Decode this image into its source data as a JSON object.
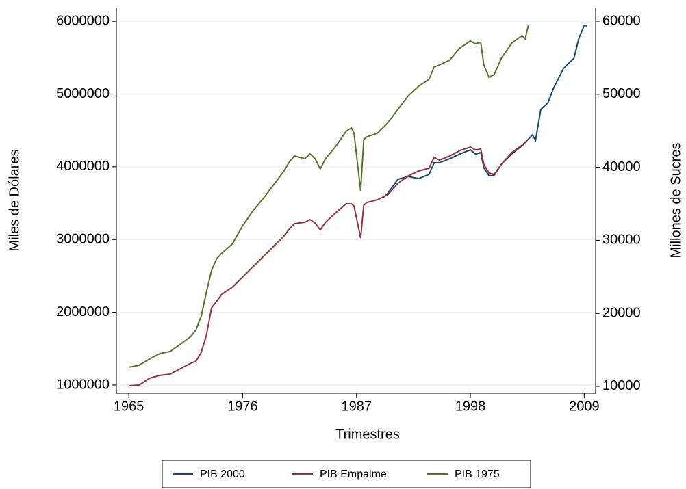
{
  "chart_data": {
    "type": "line",
    "x_label": "Trimestres",
    "y_label": "Miles de Dólares",
    "y2_label": "Millones de Sucres",
    "xlim": [
      1963.8,
      2010.1
    ],
    "xticks": [
      1965,
      1976,
      1987,
      1998,
      2009
    ],
    "ylim": [
      887000,
      6180000
    ],
    "yticks": [
      1000000,
      2000000,
      3000000,
      4000000,
      5000000,
      6000000
    ],
    "y2lim": [
      9060,
      61780
    ],
    "y2ticks": [
      10000,
      20000,
      30000,
      40000,
      50000,
      60000
    ],
    "grid": true,
    "legend": "bottom",
    "series": [
      {
        "name": "PIB 2000",
        "color": "#1a476f",
        "x": [
          1989.5,
          1990,
          1991,
          1992,
          1993,
          1994,
          1994.5,
          1995,
          1996,
          1997,
          1998,
          1998.5,
          1999,
          1999.3,
          1999.8,
          2000.3,
          2001,
          2002,
          2003,
          2004,
          2004.3,
          2004.8,
          2005.5,
          2006,
          2007,
          2008,
          2008.5,
          2009,
          2009.3
        ],
        "values": [
          3566000,
          3632000,
          3829000,
          3866000,
          3838000,
          3895000,
          4055000,
          4055000,
          4111000,
          4177000,
          4233000,
          4177000,
          4195000,
          3989000,
          3876000,
          3885000,
          4036000,
          4177000,
          4290000,
          4440000,
          4365000,
          4788000,
          4882000,
          5070000,
          5352000,
          5493000,
          5775000,
          5944000,
          5934000
        ]
      },
      {
        "name": "PIB Empalme",
        "color": "#90353b",
        "x": [
          1965,
          1966,
          1967,
          1968,
          1969,
          1970,
          1971,
          1971.5,
          1972,
          1972.5,
          1973,
          1973.5,
          1974,
          1975,
          1976,
          1977,
          1978,
          1979,
          1980,
          1980.5,
          1981,
          1982,
          1982.5,
          1983,
          1983.5,
          1984,
          1985,
          1986,
          1986.5,
          1986.75,
          1987.4,
          1987.7,
          1988,
          1989,
          1990,
          1991,
          1992,
          1993,
          1994,
          1994.5,
          1995,
          1996,
          1997,
          1998,
          1998.5,
          1999,
          1999.3,
          1999.8,
          2000.3,
          2001,
          2002,
          2003,
          2003.5
        ],
        "values": [
          990000,
          1000000,
          1094000,
          1132000,
          1150000,
          1226000,
          1301000,
          1329000,
          1451000,
          1686000,
          2062000,
          2156000,
          2250000,
          2344000,
          2485000,
          2626000,
          2767000,
          2908000,
          3049000,
          3143000,
          3218000,
          3237000,
          3274000,
          3227000,
          3133000,
          3237000,
          3368000,
          3491000,
          3491000,
          3462000,
          3021000,
          3472000,
          3509000,
          3547000,
          3613000,
          3773000,
          3876000,
          3942000,
          3980000,
          4130000,
          4092000,
          4148000,
          4224000,
          4271000,
          4233000,
          4243000,
          4036000,
          3914000,
          3895000,
          4036000,
          4195000,
          4299000,
          4365000
        ]
      },
      {
        "name": "PIB 1975",
        "color": "#55752f",
        "axis": "y2",
        "x": [
          1965,
          1966,
          1967,
          1968,
          1969,
          1970,
          1971,
          1971.5,
          1972,
          1972.5,
          1973,
          1973.5,
          1974,
          1975,
          1976,
          1977,
          1978,
          1979,
          1980,
          1980.5,
          1981,
          1982,
          1982.5,
          1983,
          1983.5,
          1984,
          1985,
          1986,
          1986.5,
          1986.75,
          1987.4,
          1987.7,
          1988,
          1989,
          1990,
          1991,
          1992,
          1993,
          1994,
          1994.5,
          1995,
          1996,
          1997,
          1998,
          1998.5,
          1999,
          1999.3,
          1999.8,
          2000.3,
          2001,
          2002,
          2003,
          2003.3,
          2003.6
        ],
        "values": [
          12620,
          12900,
          13750,
          14500,
          14780,
          15800,
          16840,
          17770,
          19640,
          22920,
          25920,
          27510,
          28260,
          29480,
          32000,
          34060,
          35750,
          37620,
          39490,
          40710,
          41550,
          41180,
          41840,
          41180,
          39780,
          41180,
          42870,
          44930,
          45390,
          44740,
          36780,
          43800,
          44180,
          44650,
          46050,
          47920,
          49790,
          51100,
          52040,
          53730,
          54010,
          54670,
          56350,
          57290,
          56910,
          57100,
          54010,
          52320,
          52700,
          54940,
          57000,
          58030,
          57570,
          59440
        ]
      }
    ]
  }
}
